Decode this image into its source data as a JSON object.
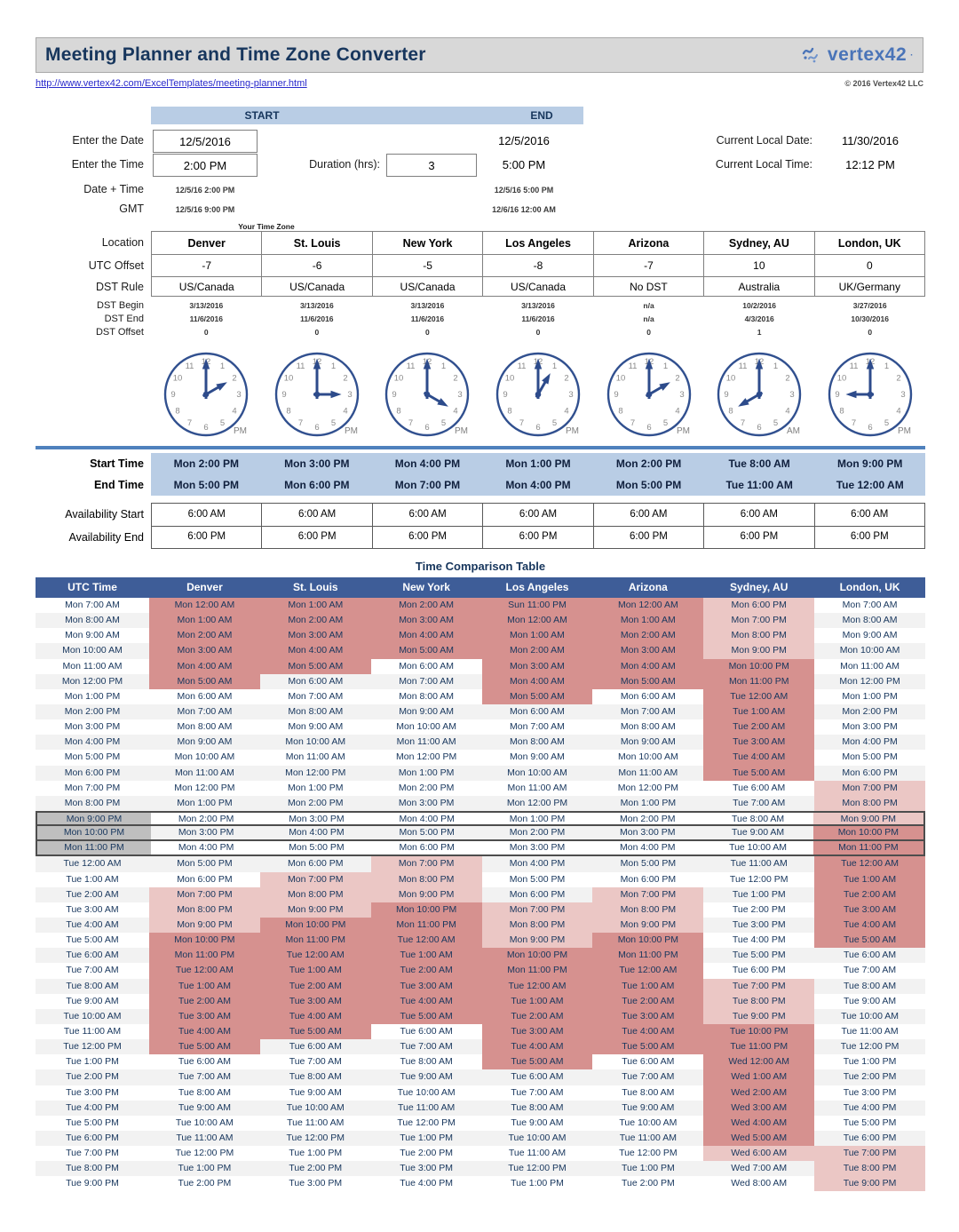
{
  "header": {
    "title": "Meeting Planner and Time Zone Converter",
    "url": "http://www.vertex42.com/ExcelTemplates/meeting-planner.html",
    "copyright": "© 2016 Vertex42 LLC",
    "logo_text": "vertex42"
  },
  "controls": {
    "start_label": "START",
    "end_label": "END",
    "enter_date_label": "Enter the Date",
    "enter_time_label": "Enter the Time",
    "date_time_label": "Date + Time",
    "gmt_label": "GMT",
    "duration_label": "Duration (hrs):",
    "duration_value": "3",
    "start": {
      "date": "12/5/2016",
      "time": "2:00 PM",
      "datetime": "12/5/16 2:00 PM",
      "gmt": "12/5/16 9:00 PM"
    },
    "end": {
      "date": "12/5/2016",
      "time": "5:00 PM",
      "datetime": "12/5/16 5:00 PM",
      "gmt": "12/6/16 12:00 AM"
    },
    "current_local_date_label": "Current Local Date:",
    "current_local_date": "11/30/2016",
    "current_local_time_label": "Current Local Time:",
    "current_local_time": "12:12 PM",
    "your_time_zone_label": "Your Time Zone"
  },
  "zone_labels": {
    "location": "Location",
    "utc_offset": "UTC Offset",
    "dst_rule": "DST Rule",
    "dst_begin": "DST Begin",
    "dst_end": "DST End",
    "dst_offset": "DST Offset",
    "start_time": "Start Time",
    "end_time": "End Time",
    "avail_start": "Availability Start",
    "avail_end": "Availability End"
  },
  "zones": [
    {
      "name": "Denver",
      "utc_offset": "-7",
      "dst_rule": "US/Canada",
      "dst_begin": "3/13/2016",
      "dst_end": "11/6/2016",
      "dst_offset": "0",
      "clock_hour": 2,
      "clock_ampm": "PM",
      "start_time": "Mon 2:00 PM",
      "end_time": "Mon 5:00 PM",
      "avail_start": "6:00 AM",
      "avail_end": "6:00 PM"
    },
    {
      "name": "St. Louis",
      "utc_offset": "-6",
      "dst_rule": "US/Canada",
      "dst_begin": "3/13/2016",
      "dst_end": "11/6/2016",
      "dst_offset": "0",
      "clock_hour": 3,
      "clock_ampm": "PM",
      "start_time": "Mon 3:00 PM",
      "end_time": "Mon 6:00 PM",
      "avail_start": "6:00 AM",
      "avail_end": "6:00 PM"
    },
    {
      "name": "New York",
      "utc_offset": "-5",
      "dst_rule": "US/Canada",
      "dst_begin": "3/13/2016",
      "dst_end": "11/6/2016",
      "dst_offset": "0",
      "clock_hour": 4,
      "clock_ampm": "PM",
      "start_time": "Mon 4:00 PM",
      "end_time": "Mon 7:00 PM",
      "avail_start": "6:00 AM",
      "avail_end": "6:00 PM"
    },
    {
      "name": "Los Angeles",
      "utc_offset": "-8",
      "dst_rule": "US/Canada",
      "dst_begin": "3/13/2016",
      "dst_end": "11/6/2016",
      "dst_offset": "0",
      "clock_hour": 1,
      "clock_ampm": "PM",
      "start_time": "Mon 1:00 PM",
      "end_time": "Mon 4:00 PM",
      "avail_start": "6:00 AM",
      "avail_end": "6:00 PM"
    },
    {
      "name": "Arizona",
      "utc_offset": "-7",
      "dst_rule": "No DST",
      "dst_begin": "n/a",
      "dst_end": "n/a",
      "dst_offset": "0",
      "clock_hour": 2,
      "clock_ampm": "PM",
      "start_time": "Mon 2:00 PM",
      "end_time": "Mon 5:00 PM",
      "avail_start": "6:00 AM",
      "avail_end": "6:00 PM"
    },
    {
      "name": "Sydney, AU",
      "utc_offset": "10",
      "dst_rule": "Australia",
      "dst_begin": "10/2/2016",
      "dst_end": "4/3/2016",
      "dst_offset": "1",
      "clock_hour": 8,
      "clock_ampm": "AM",
      "start_time": "Tue 8:00 AM",
      "end_time": "Tue 11:00 AM",
      "avail_start": "6:00 AM",
      "avail_end": "6:00 PM"
    },
    {
      "name": "London, UK",
      "utc_offset": "0",
      "dst_rule": "UK/Germany",
      "dst_begin": "3/27/2016",
      "dst_end": "10/30/2016",
      "dst_offset": "0",
      "clock_hour": 9,
      "clock_ampm": "PM",
      "start_time": "Mon 9:00 PM",
      "end_time": "Tue 12:00 AM",
      "avail_start": "6:00 AM",
      "avail_end": "6:00 PM"
    }
  ],
  "comparison": {
    "title": "Time Comparison Table",
    "headers": [
      "UTC Time",
      "Denver",
      "St. Louis",
      "New York",
      "Los Angeles",
      "Arizona",
      "Sydney, AU",
      "London, UK"
    ],
    "highlight_colors": {
      "light": "#ebc7c5",
      "dark": "#d6918f",
      "meeting_gray": "#bfbfbf"
    },
    "rows": [
      [
        "Mon 7:00 AM",
        "Mon 12:00 AM",
        "Mon 1:00 AM",
        "Mon 2:00 AM",
        "Sun 11:00 PM",
        "Mon 12:00 AM",
        "Mon 6:00 PM",
        "Mon 7:00 AM",
        "NDDDDDLN"
      ],
      [
        "Mon 8:00 AM",
        "Mon 1:00 AM",
        "Mon 2:00 AM",
        "Mon 3:00 AM",
        "Mon 12:00 AM",
        "Mon 1:00 AM",
        "Mon 7:00 PM",
        "Mon 8:00 AM",
        "NDDDDDLN"
      ],
      [
        "Mon 9:00 AM",
        "Mon 2:00 AM",
        "Mon 3:00 AM",
        "Mon 4:00 AM",
        "Mon 1:00 AM",
        "Mon 2:00 AM",
        "Mon 8:00 PM",
        "Mon 9:00 AM",
        "NDDDDDLN"
      ],
      [
        "Mon 10:00 AM",
        "Mon 3:00 AM",
        "Mon 4:00 AM",
        "Mon 5:00 AM",
        "Mon 2:00 AM",
        "Mon 3:00 AM",
        "Mon 9:00 PM",
        "Mon 10:00 AM",
        "NDDDDDLN"
      ],
      [
        "Mon 11:00 AM",
        "Mon 4:00 AM",
        "Mon 5:00 AM",
        "Mon 6:00 AM",
        "Mon 3:00 AM",
        "Mon 4:00 AM",
        "Mon 10:00 PM",
        "Mon 11:00 AM",
        "NDDNDDDN"
      ],
      [
        "Mon 12:00 PM",
        "Mon 5:00 AM",
        "Mon 6:00 AM",
        "Mon 7:00 AM",
        "Mon 4:00 AM",
        "Mon 5:00 AM",
        "Mon 11:00 PM",
        "Mon 12:00 PM",
        "NDNNDDDN"
      ],
      [
        "Mon 1:00 PM",
        "Mon 6:00 AM",
        "Mon 7:00 AM",
        "Mon 8:00 AM",
        "Mon 5:00 AM",
        "Mon 6:00 AM",
        "Tue 12:00 AM",
        "Mon 1:00 PM",
        "NNNNDNDN"
      ],
      [
        "Mon 2:00 PM",
        "Mon 7:00 AM",
        "Mon 8:00 AM",
        "Mon 9:00 AM",
        "Mon 6:00 AM",
        "Mon 7:00 AM",
        "Tue 1:00 AM",
        "Mon 2:00 PM",
        "NNNNNNDN"
      ],
      [
        "Mon 3:00 PM",
        "Mon 8:00 AM",
        "Mon 9:00 AM",
        "Mon 10:00 AM",
        "Mon 7:00 AM",
        "Mon 8:00 AM",
        "Tue 2:00 AM",
        "Mon 3:00 PM",
        "NNNNNNDN"
      ],
      [
        "Mon 4:00 PM",
        "Mon 9:00 AM",
        "Mon 10:00 AM",
        "Mon 11:00 AM",
        "Mon 8:00 AM",
        "Mon 9:00 AM",
        "Tue 3:00 AM",
        "Mon 4:00 PM",
        "NNNNNNDN"
      ],
      [
        "Mon 5:00 PM",
        "Mon 10:00 AM",
        "Mon 11:00 AM",
        "Mon 12:00 PM",
        "Mon 9:00 AM",
        "Mon 10:00 AM",
        "Tue 4:00 AM",
        "Mon 5:00 PM",
        "NNNNNNDN"
      ],
      [
        "Mon 6:00 PM",
        "Mon 11:00 AM",
        "Mon 12:00 PM",
        "Mon 1:00 PM",
        "Mon 10:00 AM",
        "Mon 11:00 AM",
        "Tue 5:00 AM",
        "Mon 6:00 PM",
        "NNNNNNDN"
      ],
      [
        "Mon 7:00 PM",
        "Mon 12:00 PM",
        "Mon 1:00 PM",
        "Mon 2:00 PM",
        "Mon 11:00 AM",
        "Mon 12:00 PM",
        "Tue 6:00 AM",
        "Mon 7:00 PM",
        "NNNNNNNL"
      ],
      [
        "Mon 8:00 PM",
        "Mon 1:00 PM",
        "Mon 2:00 PM",
        "Mon 3:00 PM",
        "Mon 12:00 PM",
        "Mon 1:00 PM",
        "Tue 7:00 AM",
        "Mon 8:00 PM",
        "NNNNNNNL"
      ],
      [
        "Mon 9:00 PM",
        "Mon 2:00 PM",
        "Mon 3:00 PM",
        "Mon 4:00 PM",
        "Mon 1:00 PM",
        "Mon 2:00 PM",
        "Tue 8:00 AM",
        "Mon 9:00 PM",
        "GNNNNNNL"
      ],
      [
        "Mon 10:00 PM",
        "Mon 3:00 PM",
        "Mon 4:00 PM",
        "Mon 5:00 PM",
        "Mon 2:00 PM",
        "Mon 3:00 PM",
        "Tue 9:00 AM",
        "Mon 10:00 PM",
        "GNNNNNND"
      ],
      [
        "Mon 11:00 PM",
        "Mon 4:00 PM",
        "Mon 5:00 PM",
        "Mon 6:00 PM",
        "Mon 3:00 PM",
        "Mon 4:00 PM",
        "Tue 10:00 AM",
        "Mon 11:00 PM",
        "GNNNNNND"
      ],
      [
        "Tue 12:00 AM",
        "Mon 5:00 PM",
        "Mon 6:00 PM",
        "Mon 7:00 PM",
        "Mon 4:00 PM",
        "Mon 5:00 PM",
        "Tue 11:00 AM",
        "Tue 12:00 AM",
        "NNNLNNND"
      ],
      [
        "Tue 1:00 AM",
        "Mon 6:00 PM",
        "Mon 7:00 PM",
        "Mon 8:00 PM",
        "Mon 5:00 PM",
        "Mon 6:00 PM",
        "Tue 12:00 PM",
        "Tue 1:00 AM",
        "NNLLNNND"
      ],
      [
        "Tue 2:00 AM",
        "Mon 7:00 PM",
        "Mon 8:00 PM",
        "Mon 9:00 PM",
        "Mon 6:00 PM",
        "Mon 7:00 PM",
        "Tue 1:00 PM",
        "Tue 2:00 AM",
        "NLLLNLND"
      ],
      [
        "Tue 3:00 AM",
        "Mon 8:00 PM",
        "Mon 9:00 PM",
        "Mon 10:00 PM",
        "Mon 7:00 PM",
        "Mon 8:00 PM",
        "Tue 2:00 PM",
        "Tue 3:00 AM",
        "NLLDLLND"
      ],
      [
        "Tue 4:00 AM",
        "Mon 9:00 PM",
        "Mon 10:00 PM",
        "Mon 11:00 PM",
        "Mon 8:00 PM",
        "Mon 9:00 PM",
        "Tue 3:00 PM",
        "Tue 4:00 AM",
        "NLDDLLND"
      ],
      [
        "Tue 5:00 AM",
        "Mon 10:00 PM",
        "Mon 11:00 PM",
        "Tue 12:00 AM",
        "Mon 9:00 PM",
        "Mon 10:00 PM",
        "Tue 4:00 PM",
        "Tue 5:00 AM",
        "NDDDLDND"
      ],
      [
        "Tue 6:00 AM",
        "Mon 11:00 PM",
        "Tue 12:00 AM",
        "Tue 1:00 AM",
        "Mon 10:00 PM",
        "Mon 11:00 PM",
        "Tue 5:00 PM",
        "Tue 6:00 AM",
        "NDDDDDNN"
      ],
      [
        "Tue 7:00 AM",
        "Tue 12:00 AM",
        "Tue 1:00 AM",
        "Tue 2:00 AM",
        "Mon 11:00 PM",
        "Tue 12:00 AM",
        "Tue 6:00 PM",
        "Tue 7:00 AM",
        "NDDDDDNN"
      ],
      [
        "Tue 8:00 AM",
        "Tue 1:00 AM",
        "Tue 2:00 AM",
        "Tue 3:00 AM",
        "Tue 12:00 AM",
        "Tue 1:00 AM",
        "Tue 7:00 PM",
        "Tue 8:00 AM",
        "NDDDDDLN"
      ],
      [
        "Tue 9:00 AM",
        "Tue 2:00 AM",
        "Tue 3:00 AM",
        "Tue 4:00 AM",
        "Tue 1:00 AM",
        "Tue 2:00 AM",
        "Tue 8:00 PM",
        "Tue 9:00 AM",
        "NDDDDDLN"
      ],
      [
        "Tue 10:00 AM",
        "Tue 3:00 AM",
        "Tue 4:00 AM",
        "Tue 5:00 AM",
        "Tue 2:00 AM",
        "Tue 3:00 AM",
        "Tue 9:00 PM",
        "Tue 10:00 AM",
        "NDDDDDLN"
      ],
      [
        "Tue 11:00 AM",
        "Tue 4:00 AM",
        "Tue 5:00 AM",
        "Tue 6:00 AM",
        "Tue 3:00 AM",
        "Tue 4:00 AM",
        "Tue 10:00 PM",
        "Tue 11:00 AM",
        "NDDNDDDN"
      ],
      [
        "Tue 12:00 PM",
        "Tue 5:00 AM",
        "Tue 6:00 AM",
        "Tue 7:00 AM",
        "Tue 4:00 AM",
        "Tue 5:00 AM",
        "Tue 11:00 PM",
        "Tue 12:00 PM",
        "NDNNDDDN"
      ],
      [
        "Tue 1:00 PM",
        "Tue 6:00 AM",
        "Tue 7:00 AM",
        "Tue 8:00 AM",
        "Tue 5:00 AM",
        "Tue 6:00 AM",
        "Wed 12:00 AM",
        "Tue 1:00 PM",
        "NNNNDNDN"
      ],
      [
        "Tue 2:00 PM",
        "Tue 7:00 AM",
        "Tue 8:00 AM",
        "Tue 9:00 AM",
        "Tue 6:00 AM",
        "Tue 7:00 AM",
        "Wed 1:00 AM",
        "Tue 2:00 PM",
        "NNNNNNDN"
      ],
      [
        "Tue 3:00 PM",
        "Tue 8:00 AM",
        "Tue 9:00 AM",
        "Tue 10:00 AM",
        "Tue 7:00 AM",
        "Tue 8:00 AM",
        "Wed 2:00 AM",
        "Tue 3:00 PM",
        "NNNNNNDN"
      ],
      [
        "Tue 4:00 PM",
        "Tue 9:00 AM",
        "Tue 10:00 AM",
        "Tue 11:00 AM",
        "Tue 8:00 AM",
        "Tue 9:00 AM",
        "Wed 3:00 AM",
        "Tue 4:00 PM",
        "NNNNNNDN"
      ],
      [
        "Tue 5:00 PM",
        "Tue 10:00 AM",
        "Tue 11:00 AM",
        "Tue 12:00 PM",
        "Tue 9:00 AM",
        "Tue 10:00 AM",
        "Wed 4:00 AM",
        "Tue 5:00 PM",
        "NNNNNNDN"
      ],
      [
        "Tue 6:00 PM",
        "Tue 11:00 AM",
        "Tue 12:00 PM",
        "Tue 1:00 PM",
        "Tue 10:00 AM",
        "Tue 11:00 AM",
        "Wed 5:00 AM",
        "Tue 6:00 PM",
        "NNNNNNDN"
      ],
      [
        "Tue 7:00 PM",
        "Tue 12:00 PM",
        "Tue 1:00 PM",
        "Tue 2:00 PM",
        "Tue 11:00 AM",
        "Tue 12:00 PM",
        "Wed 6:00 AM",
        "Tue 7:00 PM",
        "NNNNNNLL"
      ],
      [
        "Tue 8:00 PM",
        "Tue 1:00 PM",
        "Tue 2:00 PM",
        "Tue 3:00 PM",
        "Tue 12:00 PM",
        "Tue 1:00 PM",
        "Wed 7:00 AM",
        "Tue 8:00 PM",
        "NNNNNNNL"
      ],
      [
        "Tue 9:00 PM",
        "Tue 2:00 PM",
        "Tue 3:00 PM",
        "Tue 4:00 PM",
        "Tue 1:00 PM",
        "Tue 2:00 PM",
        "Wed 8:00 AM",
        "Tue 9:00 PM",
        "NNNNNNNL"
      ]
    ]
  }
}
